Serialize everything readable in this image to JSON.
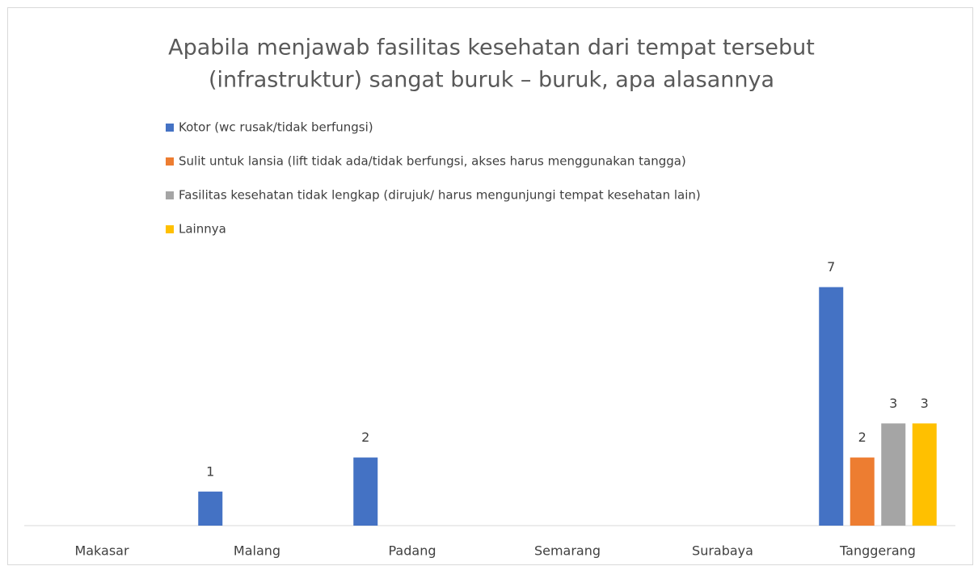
{
  "chart_data": {
    "type": "bar",
    "title": [
      "Apabila menjawab fasilitas kesehatan dari tempat tersebut",
      "(infrastruktur) sangat buruk – buruk, apa alasannya"
    ],
    "categories": [
      "Makasar",
      "Malang",
      "Padang",
      "Semarang",
      "Surabaya",
      "Tanggerang"
    ],
    "series": [
      {
        "name": "Kotor (wc rusak/tidak berfungsi)",
        "color": "#4472c4",
        "values": [
          null,
          1,
          2,
          null,
          null,
          7
        ]
      },
      {
        "name": "Sulit untuk lansia (lift tidak ada/tidak berfungsi, akses harus menggunakan tangga)",
        "color": "#ed7d31",
        "values": [
          null,
          null,
          null,
          null,
          null,
          2
        ]
      },
      {
        "name": "Fasilitas kesehatan tidak lengkap (dirujuk/ harus mengunjungi tempat kesehatan lain)",
        "color": "#a5a5a5",
        "values": [
          null,
          null,
          null,
          null,
          null,
          3
        ]
      },
      {
        "name": "Lainnya",
        "color": "#ffc000",
        "values": [
          null,
          null,
          null,
          null,
          null,
          3
        ]
      }
    ],
    "legend": "top-left"
  }
}
